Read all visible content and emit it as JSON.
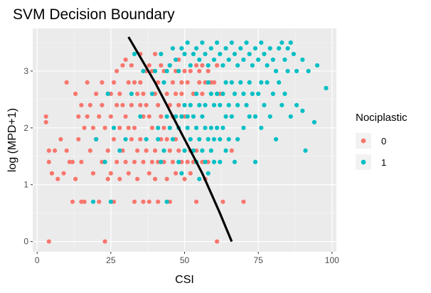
{
  "chart_data": {
    "type": "scatter",
    "title": "SVM Decision Boundary",
    "xlabel": "CSI",
    "ylabel": "log (MPD+1)",
    "xlim": [
      -1.5,
      101.5
    ],
    "ylim": [
      -0.18,
      3.75
    ],
    "x_ticks": [
      0,
      25,
      50,
      75,
      100
    ],
    "y_ticks": [
      0,
      1,
      2,
      3
    ],
    "grid": true,
    "legend": {
      "title": "Nociplastic",
      "position": "right"
    },
    "series": [
      {
        "name": "0",
        "color": "#F8766D",
        "points": [
          [
            3,
            2.2
          ],
          [
            3,
            2.1
          ],
          [
            4,
            1.6
          ],
          [
            4,
            1.4
          ],
          [
            4,
            0.0
          ],
          [
            5,
            1.2
          ],
          [
            6,
            1.6
          ],
          [
            7,
            1.1
          ],
          [
            8,
            1.8
          ],
          [
            9,
            1.2
          ],
          [
            10,
            2.8
          ],
          [
            10,
            1.6
          ],
          [
            11,
            1.4
          ],
          [
            12,
            1.4
          ],
          [
            12,
            0.7
          ],
          [
            13,
            2.6
          ],
          [
            13,
            1.1
          ],
          [
            14,
            2.2
          ],
          [
            14,
            1.8
          ],
          [
            15,
            2.4
          ],
          [
            15,
            1.4
          ],
          [
            15,
            0.7
          ],
          [
            16,
            2.0
          ],
          [
            16,
            0.7
          ],
          [
            17,
            2.8
          ],
          [
            17,
            2.2
          ],
          [
            18,
            2.4
          ],
          [
            18,
            1.6
          ],
          [
            19,
            2.0
          ],
          [
            19,
            1.2
          ],
          [
            20,
            2.6
          ],
          [
            20,
            1.8
          ],
          [
            21,
            2.2
          ],
          [
            21,
            0.7
          ],
          [
            22,
            2.8
          ],
          [
            22,
            2.4
          ],
          [
            22,
            1.4
          ],
          [
            23,
            2.0
          ],
          [
            23,
            0.0
          ],
          [
            24,
            2.6
          ],
          [
            24,
            1.6
          ],
          [
            24,
            1.1
          ],
          [
            25,
            2.6
          ],
          [
            25,
            2.2
          ],
          [
            25,
            1.2
          ],
          [
            26,
            2.8
          ],
          [
            26,
            1.8
          ],
          [
            26,
            0.7
          ],
          [
            27,
            3.0
          ],
          [
            27,
            2.4
          ],
          [
            27,
            1.4
          ],
          [
            28,
            2.6
          ],
          [
            28,
            2.0
          ],
          [
            28,
            1.1
          ],
          [
            29,
            3.1
          ],
          [
            29,
            2.4
          ],
          [
            29,
            1.6
          ],
          [
            30,
            3.2
          ],
          [
            30,
            2.2
          ],
          [
            30,
            1.4
          ],
          [
            31,
            2.8
          ],
          [
            31,
            2.0
          ],
          [
            31,
            1.2
          ],
          [
            32,
            3.1
          ],
          [
            32,
            2.4
          ],
          [
            32,
            1.8
          ],
          [
            33,
            2.8
          ],
          [
            33,
            2.0
          ],
          [
            33,
            1.4
          ],
          [
            33,
            0.7
          ],
          [
            34,
            2.6
          ],
          [
            34,
            1.6
          ],
          [
            34,
            1.1
          ],
          [
            35,
            3.3
          ],
          [
            35,
            2.8
          ],
          [
            35,
            2.4
          ],
          [
            35,
            1.8
          ],
          [
            36,
            2.6
          ],
          [
            36,
            2.2
          ],
          [
            36,
            1.4
          ],
          [
            36,
            0.7
          ],
          [
            37,
            3.0
          ],
          [
            37,
            2.4
          ],
          [
            37,
            1.6
          ],
          [
            38,
            3.1
          ],
          [
            38,
            2.2
          ],
          [
            38,
            1.2
          ],
          [
            38,
            0.7
          ],
          [
            39,
            3.0
          ],
          [
            39,
            2.0
          ],
          [
            39,
            1.4
          ],
          [
            40,
            3.3
          ],
          [
            40,
            2.6
          ],
          [
            40,
            1.6
          ],
          [
            40,
            1.1
          ],
          [
            41,
            2.8
          ],
          [
            41,
            2.4
          ],
          [
            41,
            1.4
          ],
          [
            41,
            0.7
          ],
          [
            42,
            3.1
          ],
          [
            42,
            2.2
          ],
          [
            42,
            1.8
          ],
          [
            43,
            3.0
          ],
          [
            43,
            2.0
          ],
          [
            43,
            1.4
          ],
          [
            44,
            2.6
          ],
          [
            44,
            1.8
          ],
          [
            44,
            1.1
          ],
          [
            45,
            3.1
          ],
          [
            45,
            2.4
          ],
          [
            45,
            1.6
          ],
          [
            45,
            0.7
          ],
          [
            46,
            2.8
          ],
          [
            46,
            2.2
          ],
          [
            46,
            1.4
          ],
          [
            47,
            3.0
          ],
          [
            47,
            2.6
          ],
          [
            47,
            1.8
          ],
          [
            47,
            1.2
          ],
          [
            48,
            3.2
          ],
          [
            48,
            2.4
          ],
          [
            48,
            1.6
          ],
          [
            49,
            2.8
          ],
          [
            49,
            2.6
          ],
          [
            49,
            1.4
          ],
          [
            50,
            3.0
          ],
          [
            50,
            2.2
          ],
          [
            50,
            1.1
          ],
          [
            51,
            2.8
          ],
          [
            51,
            1.4
          ],
          [
            52,
            3.0
          ],
          [
            52,
            1.6
          ],
          [
            52,
            1.2
          ],
          [
            53,
            2.6
          ],
          [
            53,
            1.4
          ],
          [
            54,
            3.1
          ],
          [
            54,
            1.6
          ],
          [
            54,
            0.7
          ],
          [
            55,
            3.0
          ],
          [
            55,
            2.8
          ],
          [
            56,
            3.1
          ],
          [
            56,
            2.6
          ],
          [
            56,
            1.4
          ],
          [
            57,
            2.8
          ],
          [
            57,
            1.1
          ],
          [
            58,
            3.0
          ],
          [
            58,
            1.4
          ],
          [
            59,
            2.8
          ],
          [
            60,
            2.8
          ],
          [
            61,
            3.1
          ],
          [
            61,
            0.0
          ],
          [
            62,
            2.6
          ],
          [
            63,
            0.7
          ],
          [
            66,
            1.6
          ],
          [
            70,
            0.7
          ]
        ]
      },
      {
        "name": "1",
        "color": "#00BFC4",
        "points": [
          [
            19,
            0.7
          ],
          [
            20,
            1.8
          ],
          [
            23,
            1.4
          ],
          [
            24,
            2.6
          ],
          [
            25,
            0.7
          ],
          [
            26,
            2.0
          ],
          [
            28,
            1.6
          ],
          [
            30,
            1.8
          ],
          [
            32,
            2.6
          ],
          [
            33,
            3.3
          ],
          [
            35,
            2.2
          ],
          [
            36,
            3.0
          ],
          [
            37,
            1.8
          ],
          [
            39,
            2.6
          ],
          [
            40,
            3.0
          ],
          [
            41,
            2.0
          ],
          [
            41,
            1.8
          ],
          [
            42,
            3.3
          ],
          [
            42,
            1.4
          ],
          [
            43,
            2.8
          ],
          [
            43,
            1.6
          ],
          [
            44,
            3.0
          ],
          [
            44,
            2.2
          ],
          [
            44,
            0.7
          ],
          [
            45,
            3.1
          ],
          [
            45,
            2.0
          ],
          [
            46,
            3.4
          ],
          [
            46,
            1.8
          ],
          [
            47,
            3.2
          ],
          [
            47,
            2.2
          ],
          [
            48,
            3.0
          ],
          [
            48,
            2.0
          ],
          [
            48,
            1.4
          ],
          [
            49,
            3.4
          ],
          [
            49,
            2.2
          ],
          [
            49,
            1.2
          ],
          [
            50,
            3.3
          ],
          [
            50,
            2.4
          ],
          [
            50,
            1.6
          ],
          [
            51,
            3.5
          ],
          [
            51,
            2.0
          ],
          [
            51,
            2.2
          ],
          [
            52,
            3.1
          ],
          [
            52,
            2.4
          ],
          [
            52,
            1.8
          ],
          [
            53,
            3.3
          ],
          [
            53,
            2.2
          ],
          [
            53,
            1.6
          ],
          [
            54,
            3.4
          ],
          [
            54,
            2.6
          ],
          [
            54,
            2.0
          ],
          [
            54,
            1.4
          ],
          [
            55,
            3.2
          ],
          [
            55,
            2.4
          ],
          [
            55,
            1.8
          ],
          [
            55,
            1.1
          ],
          [
            56,
            3.5
          ],
          [
            56,
            2.2
          ],
          [
            56,
            1.6
          ],
          [
            57,
            3.3
          ],
          [
            57,
            2.4
          ],
          [
            57,
            2.0
          ],
          [
            57,
            1.4
          ],
          [
            58,
            3.1
          ],
          [
            58,
            2.8
          ],
          [
            58,
            1.8
          ],
          [
            58,
            1.2
          ],
          [
            59,
            3.4
          ],
          [
            59,
            2.6
          ],
          [
            59,
            2.0
          ],
          [
            59,
            1.6
          ],
          [
            60,
            3.2
          ],
          [
            60,
            2.4
          ],
          [
            60,
            1.8
          ],
          [
            60,
            1.4
          ],
          [
            61,
            3.5
          ],
          [
            61,
            2.6
          ],
          [
            61,
            2.0
          ],
          [
            62,
            3.3
          ],
          [
            62,
            2.4
          ],
          [
            62,
            1.8
          ],
          [
            62,
            1.4
          ],
          [
            63,
            3.1
          ],
          [
            63,
            2.6
          ],
          [
            63,
            2.0
          ],
          [
            64,
            3.4
          ],
          [
            64,
            2.8
          ],
          [
            64,
            2.2
          ],
          [
            64,
            1.6
          ],
          [
            65,
            3.2
          ],
          [
            65,
            2.4
          ],
          [
            65,
            1.8
          ],
          [
            66,
            3.5
          ],
          [
            66,
            2.8
          ],
          [
            66,
            2.2
          ],
          [
            67,
            3.3
          ],
          [
            67,
            2.6
          ],
          [
            67,
            1.4
          ],
          [
            68,
            3.1
          ],
          [
            68,
            2.4
          ],
          [
            68,
            1.8
          ],
          [
            69,
            3.4
          ],
          [
            69,
            2.8
          ],
          [
            70,
            3.2
          ],
          [
            70,
            2.6
          ],
          [
            70,
            2.0
          ],
          [
            71,
            3.5
          ],
          [
            71,
            2.4
          ],
          [
            72,
            3.3
          ],
          [
            72,
            2.8
          ],
          [
            72,
            2.2
          ],
          [
            73,
            3.1
          ],
          [
            73,
            2.6
          ],
          [
            74,
            3.4
          ],
          [
            74,
            2.2
          ],
          [
            74,
            1.4
          ],
          [
            75,
            3.2
          ],
          [
            75,
            2.6
          ],
          [
            76,
            3.5
          ],
          [
            76,
            2.8
          ],
          [
            76,
            2.0
          ],
          [
            77,
            3.3
          ],
          [
            77,
            2.4
          ],
          [
            78,
            3.1
          ],
          [
            78,
            2.8
          ],
          [
            79,
            3.4
          ],
          [
            79,
            2.2
          ],
          [
            80,
            3.2
          ],
          [
            80,
            2.6
          ],
          [
            81,
            3.0
          ],
          [
            81,
            1.8
          ],
          [
            82,
            3.4
          ],
          [
            82,
            2.8
          ],
          [
            83,
            3.5
          ],
          [
            83,
            2.4
          ],
          [
            84,
            3.2
          ],
          [
            84,
            2.6
          ],
          [
            85,
            3.4
          ],
          [
            85,
            3.0
          ],
          [
            86,
            3.5
          ],
          [
            86,
            2.2
          ],
          [
            87,
            3.3
          ],
          [
            88,
            3.0
          ],
          [
            88,
            2.4
          ],
          [
            90,
            3.2
          ],
          [
            90,
            2.3
          ],
          [
            91,
            1.6
          ],
          [
            92,
            3.0
          ],
          [
            94,
            2.1
          ],
          [
            95,
            3.1
          ],
          [
            98,
            2.7
          ]
        ]
      }
    ],
    "boundary": {
      "name": "SVM Decision Boundary",
      "color": "#000000",
      "points": [
        [
          31,
          3.6
        ],
        [
          40,
          2.8
        ],
        [
          48,
          2.0
        ],
        [
          56,
          1.2
        ],
        [
          62,
          0.5
        ],
        [
          66,
          0.0
        ]
      ]
    }
  }
}
